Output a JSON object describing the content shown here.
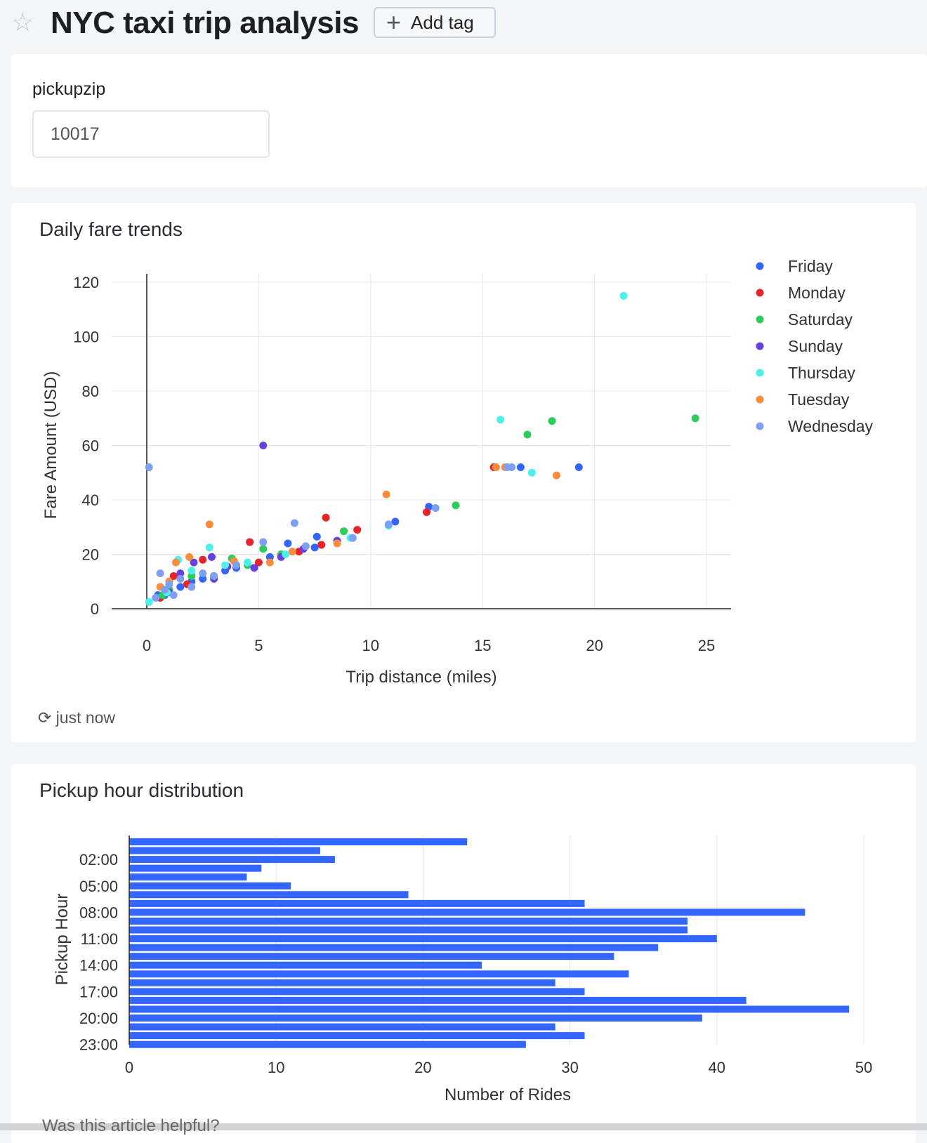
{
  "header": {
    "title": "NYC taxi trip analysis",
    "star_icon": "star-outline-icon",
    "add_tag_label": "Add tag"
  },
  "filter": {
    "label": "pickupzip",
    "value": "10017"
  },
  "scatter_card": {
    "title": "Daily fare trends",
    "refresh_text": "just now"
  },
  "bar_card": {
    "title": "Pickup hour distribution"
  },
  "footer": {
    "text": "Was this article helpful?"
  },
  "chart_data": [
    {
      "type": "scatter",
      "title": "Daily fare trends",
      "xlabel": "Trip distance (miles)",
      "ylabel": "Fare Amount (USD)",
      "xlim": [
        -1.6,
        26.1
      ],
      "ylim": [
        0,
        124
      ],
      "xticks": [
        0,
        5,
        10,
        15,
        20,
        25
      ],
      "yticks": [
        0,
        20,
        40,
        60,
        80,
        100,
        120
      ],
      "grid": true,
      "legend_position": "right",
      "series": [
        {
          "name": "Friday",
          "color": "#3366ff",
          "points": [
            [
              19.3,
              52
            ],
            [
              16.7,
              52
            ],
            [
              12.6,
              37.5
            ],
            [
              11.1,
              32
            ],
            [
              7.6,
              26.5
            ],
            [
              7.5,
              22.5
            ],
            [
              6.3,
              24
            ],
            [
              5.5,
              19
            ],
            [
              3.5,
              14
            ],
            [
              2,
              10
            ],
            [
              1,
              7
            ],
            [
              0.5,
              5
            ],
            [
              1.5,
              8
            ],
            [
              2.5,
              11
            ],
            [
              4,
              15
            ],
            [
              0.8,
              5
            ]
          ]
        },
        {
          "name": "Monday",
          "color": "#e8232a",
          "points": [
            [
              8.0,
              33.5
            ],
            [
              12.5,
              35.5
            ],
            [
              4.6,
              24.5
            ],
            [
              9.4,
              29
            ],
            [
              7.8,
              23.5
            ],
            [
              15.5,
              52
            ],
            [
              2.5,
              18
            ],
            [
              1.2,
              12
            ],
            [
              0.6,
              4
            ],
            [
              1.8,
              9
            ],
            [
              3,
              12
            ],
            [
              6.8,
              21
            ],
            [
              5,
              17
            ]
          ]
        },
        {
          "name": "Saturday",
          "color": "#2ecc5f",
          "points": [
            [
              24.5,
              70
            ],
            [
              18.1,
              69
            ],
            [
              17.0,
              64
            ],
            [
              13.8,
              38
            ],
            [
              8.8,
              28.5
            ],
            [
              5.2,
              22
            ],
            [
              3.8,
              18.5
            ],
            [
              2,
              12
            ],
            [
              1,
              7
            ],
            [
              4.5,
              16
            ],
            [
              6,
              20
            ],
            [
              0.7,
              5
            ]
          ]
        },
        {
          "name": "Sunday",
          "color": "#6741e0",
          "points": [
            [
              5.2,
              60
            ],
            [
              8.5,
              25
            ],
            [
              6.0,
              19
            ],
            [
              3.6,
              15.5
            ],
            [
              2.9,
              19
            ],
            [
              2.1,
              17
            ],
            [
              1.5,
              13
            ],
            [
              4.8,
              15
            ],
            [
              7,
              22
            ],
            [
              1,
              6
            ],
            [
              3,
              11
            ]
          ]
        },
        {
          "name": "Thursday",
          "color": "#4ef0ec",
          "points": [
            [
              21.3,
              115
            ],
            [
              15.8,
              69.5
            ],
            [
              17.2,
              50
            ],
            [
              10.8,
              30.5
            ],
            [
              9.1,
              26
            ],
            [
              2.8,
              22.5
            ],
            [
              1.4,
              18
            ],
            [
              4.5,
              17
            ],
            [
              0.1,
              2.5
            ],
            [
              0.9,
              6
            ],
            [
              6.2,
              20
            ],
            [
              2,
              14
            ],
            [
              3.5,
              16
            ]
          ]
        },
        {
          "name": "Tuesday",
          "color": "#fb8c3b",
          "points": [
            [
              2.8,
              31
            ],
            [
              10.7,
              42
            ],
            [
              18.3,
              49
            ],
            [
              15.6,
              52
            ],
            [
              16.0,
              52
            ],
            [
              8.5,
              24
            ],
            [
              6.5,
              21
            ],
            [
              3.9,
              17.5
            ],
            [
              1.9,
              19
            ],
            [
              1.3,
              17
            ],
            [
              0.6,
              8
            ],
            [
              1.0,
              10
            ],
            [
              5.5,
              17
            ]
          ]
        },
        {
          "name": "Wednesday",
          "color": "#7f9ff5",
          "points": [
            [
              0.1,
              52
            ],
            [
              6.6,
              31.5
            ],
            [
              5.2,
              24.5
            ],
            [
              12.9,
              37
            ],
            [
              10.8,
              31
            ],
            [
              16.3,
              52
            ],
            [
              16.1,
              52
            ],
            [
              9.2,
              26
            ],
            [
              7.1,
              23
            ],
            [
              4.0,
              16
            ],
            [
              0.6,
              13
            ],
            [
              1,
              9
            ],
            [
              1.5,
              11
            ],
            [
              2.5,
              13
            ],
            [
              0.4,
              4
            ],
            [
              0.8,
              7
            ],
            [
              1.2,
              5
            ],
            [
              2,
              8
            ],
            [
              3,
              12
            ]
          ]
        }
      ]
    },
    {
      "type": "bar",
      "orientation": "horizontal",
      "title": "Pickup hour distribution",
      "xlabel": "Number of Rides",
      "ylabel": "Pickup Hour",
      "xlim": [
        0,
        50
      ],
      "xticks": [
        0,
        10,
        20,
        30,
        40,
        50
      ],
      "ytick_labels": [
        "02:00",
        "05:00",
        "08:00",
        "11:00",
        "14:00",
        "17:00",
        "20:00",
        "23:00"
      ],
      "color": "#3366ff",
      "grid": true,
      "categories": [
        "00:00",
        "01:00",
        "02:00",
        "03:00",
        "04:00",
        "05:00",
        "06:00",
        "07:00",
        "08:00",
        "09:00",
        "10:00",
        "11:00",
        "12:00",
        "13:00",
        "14:00",
        "15:00",
        "16:00",
        "17:00",
        "18:00",
        "19:00",
        "20:00",
        "21:00",
        "22:00",
        "23:00"
      ],
      "values": [
        23,
        13,
        14,
        9,
        8,
        11,
        19,
        31,
        46,
        38,
        38,
        40,
        36,
        33,
        24,
        34,
        29,
        31,
        42,
        49,
        39,
        29,
        31,
        27
      ]
    }
  ]
}
